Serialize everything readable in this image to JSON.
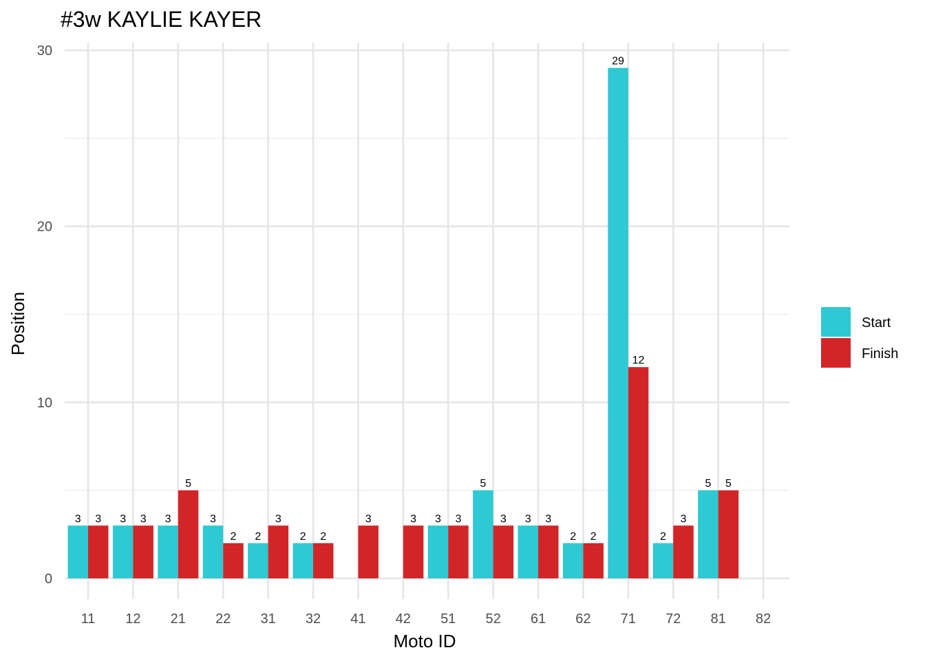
{
  "chart_data": {
    "type": "bar",
    "title": "#3w KAYLIE KAYER",
    "xlabel": "Moto ID",
    "ylabel": "Position",
    "categories": [
      "11",
      "12",
      "21",
      "22",
      "31",
      "32",
      "41",
      "42",
      "51",
      "52",
      "61",
      "62",
      "71",
      "72",
      "81",
      "82"
    ],
    "series": [
      {
        "name": "Start",
        "color": "#2ec9d2",
        "values": [
          3,
          3,
          3,
          3,
          2,
          2,
          null,
          null,
          3,
          5,
          3,
          2,
          29,
          2,
          5,
          null
        ]
      },
      {
        "name": "Finish",
        "color": "#d22528",
        "values": [
          3,
          3,
          5,
          2,
          3,
          2,
          3,
          3,
          3,
          3,
          3,
          2,
          12,
          3,
          5,
          null
        ]
      }
    ],
    "ylim": [
      0,
      30
    ],
    "yticks": [
      0,
      10,
      20,
      30
    ],
    "grid": true,
    "legend_position": "right"
  }
}
